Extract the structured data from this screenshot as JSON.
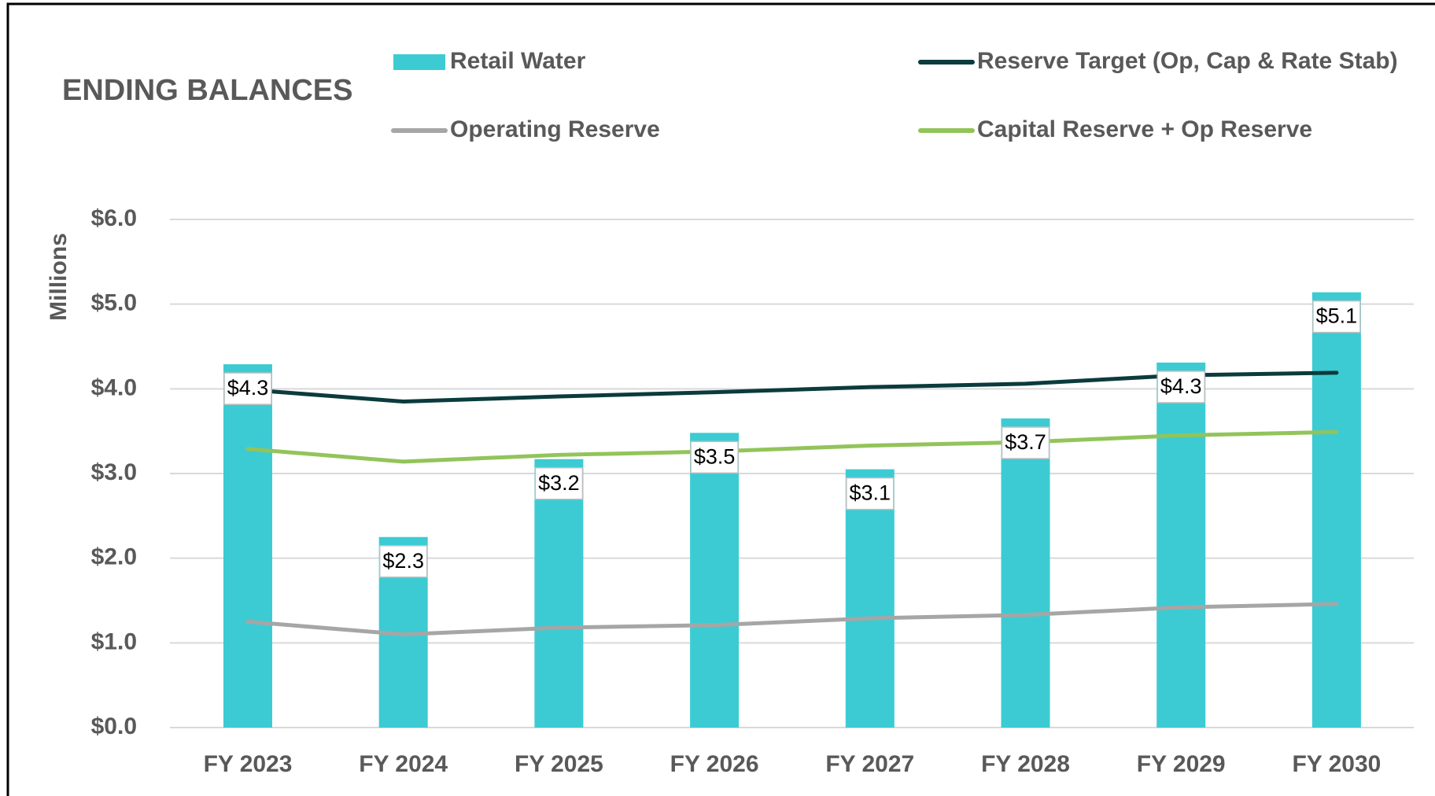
{
  "chart_data": {
    "type": "bar_line",
    "title": "ENDING BALANCES",
    "y_axis_label": "Millions",
    "categories": [
      "FY 2023",
      "FY 2024",
      "FY 2025",
      "FY 2026",
      "FY 2027",
      "FY 2028",
      "FY 2029",
      "FY 2030"
    ],
    "series": [
      {
        "name": "Retail Water",
        "type": "bar",
        "color": "#3ccbd3",
        "values": [
          4.29,
          2.25,
          3.17,
          3.48,
          3.05,
          3.65,
          4.31,
          5.14
        ],
        "value_labels": [
          "$4.3",
          "$2.3",
          "$3.2",
          "$3.5",
          "$3.1",
          "$3.7",
          "$4.3",
          "$5.1"
        ]
      },
      {
        "name": "Reserve Target (Op, Cap & Rate Stab)",
        "type": "line",
        "color": "#0b3b3c",
        "values": [
          3.99,
          3.85,
          3.91,
          3.96,
          4.02,
          4.06,
          4.16,
          4.19
        ]
      },
      {
        "name": "Operating Reserve",
        "type": "line",
        "color": "#a6a6a6",
        "values": [
          1.25,
          1.1,
          1.18,
          1.21,
          1.29,
          1.33,
          1.42,
          1.46
        ]
      },
      {
        "name": "Capital Reserve + Op Reserve",
        "type": "line",
        "color": "#92c45a",
        "values": [
          3.29,
          3.14,
          3.22,
          3.26,
          3.33,
          3.37,
          3.45,
          3.49
        ]
      }
    ],
    "ylim": [
      0,
      6
    ],
    "yticks": [
      {
        "value": 0,
        "label": "$0.0"
      },
      {
        "value": 1,
        "label": "$1.0"
      },
      {
        "value": 2,
        "label": "$2.0"
      },
      {
        "value": 3,
        "label": "$3.0"
      },
      {
        "value": 4,
        "label": "$4.0"
      },
      {
        "value": 5,
        "label": "$5.0"
      },
      {
        "value": 6,
        "label": "$6.0"
      }
    ],
    "grid": true
  }
}
